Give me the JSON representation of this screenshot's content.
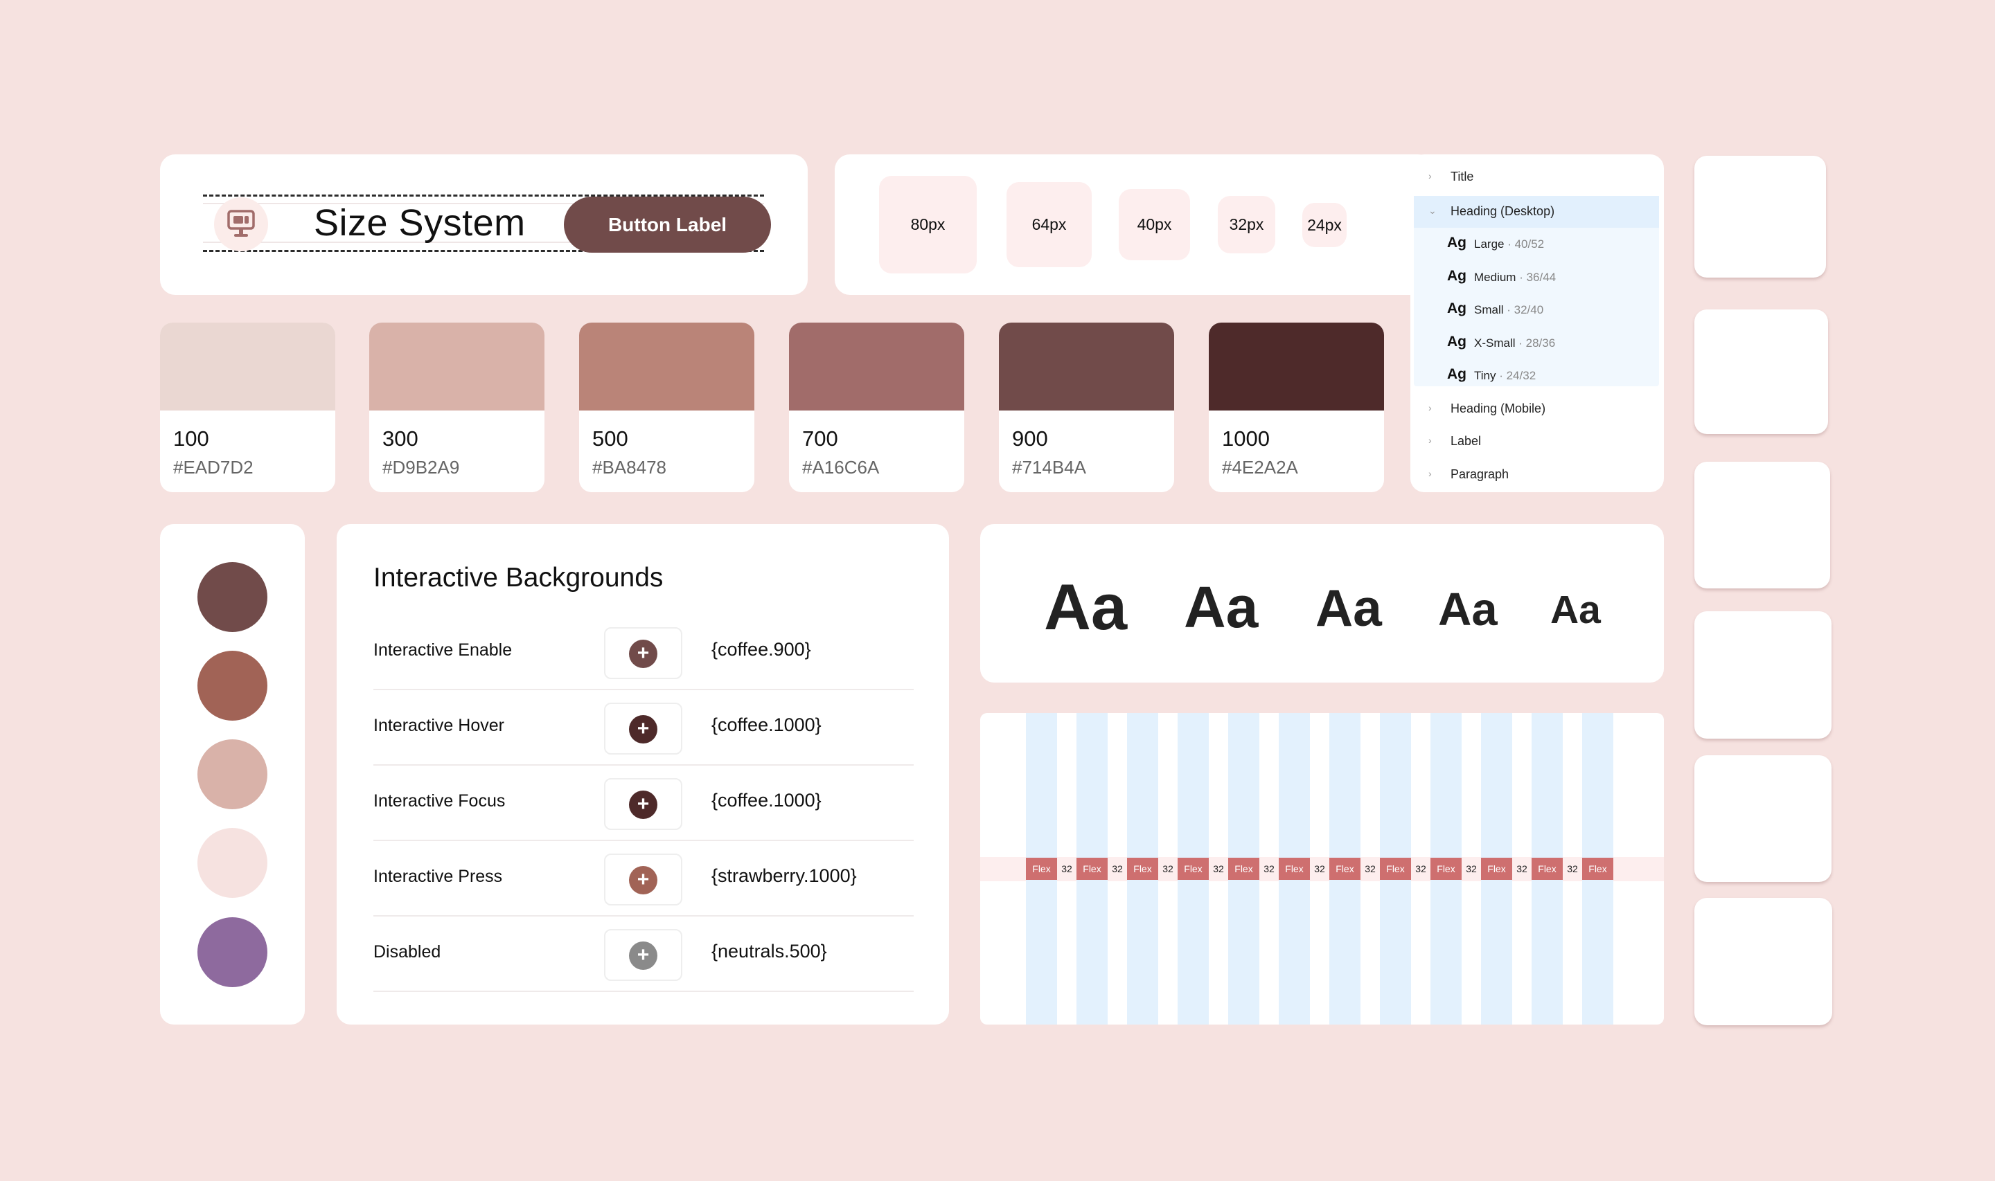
{
  "size_system": {
    "title": "Size System",
    "button_label": "Button Label",
    "icon": "monitor-icon"
  },
  "sizes": [
    "80px",
    "64px",
    "40px",
    "32px",
    "24px"
  ],
  "swatches": [
    {
      "num": "100",
      "hex": "#EAD7D2",
      "color": "#EAD7D2"
    },
    {
      "num": "300",
      "hex": "#D9B2A9",
      "color": "#D9B2A9"
    },
    {
      "num": "500",
      "hex": "#BA8478",
      "color": "#BA8478"
    },
    {
      "num": "700",
      "hex": "#A16C6A",
      "color": "#A16C6A"
    },
    {
      "num": "900",
      "hex": "#714B4A",
      "color": "#714B4A"
    },
    {
      "num": "1000",
      "hex": "#4E2A2A",
      "color": "#4E2A2A"
    }
  ],
  "tree": {
    "title": "Title",
    "heading_desktop": "Heading (Desktop)",
    "items": [
      {
        "ag": "Ag",
        "name": "Large",
        "metric": " · 40/52"
      },
      {
        "ag": "Ag",
        "name": "Medium",
        "metric": " · 36/44"
      },
      {
        "ag": "Ag",
        "name": "Small",
        "metric": " · 32/40"
      },
      {
        "ag": "Ag",
        "name": "X-Small",
        "metric": " · 28/36"
      },
      {
        "ag": "Ag",
        "name": "Tiny",
        "metric": " · 24/32"
      }
    ],
    "heading_mobile": "Heading (Mobile)",
    "label": "Label",
    "paragraph": "Paragraph"
  },
  "circles": [
    "#714B4A",
    "#A16356",
    "#D9B2A9",
    "#F6E2E0",
    "#8E6A9E"
  ],
  "interactive": {
    "title": "Interactive Backgrounds",
    "rows": [
      {
        "label": "Interactive Enable",
        "token": "{coffee.900}",
        "color": "#714B4A"
      },
      {
        "label": "Interactive Hover",
        "token": "{coffee.1000}",
        "color": "#4E2A2A"
      },
      {
        "label": "Interactive Focus",
        "token": "{coffee.1000}",
        "color": "#4E2A2A"
      },
      {
        "label": "Interactive Press",
        "token": "{strawberry.1000}",
        "color": "#A16356"
      },
      {
        "label": "Disabled",
        "token": "{neutrals.500}",
        "color": "#8A8A8A"
      }
    ]
  },
  "aa": [
    "Aa",
    "Aa",
    "Aa",
    "Aa",
    "Aa"
  ],
  "grid": {
    "flex_label": "Flex",
    "gap_label": "32"
  }
}
